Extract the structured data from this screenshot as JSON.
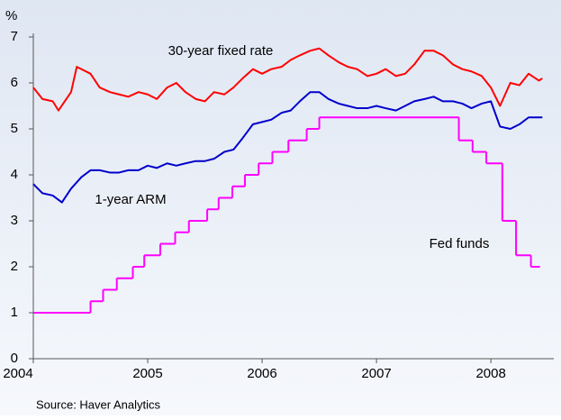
{
  "chart_data": {
    "type": "line",
    "ylabel": "%",
    "source": "Source: Haver Analytics",
    "xlim": [
      2004,
      2008.55
    ],
    "xticks": [
      2004,
      2005,
      2006,
      2007,
      2008
    ],
    "ylim": [
      0,
      7
    ],
    "yticks": [
      0,
      1,
      2,
      3,
      4,
      5,
      6,
      7
    ],
    "series": [
      {
        "name": "30-year fixed rate",
        "color": "#ff0000",
        "x": [
          2004.0,
          2004.08,
          2004.17,
          2004.22,
          2004.33,
          2004.38,
          2004.5,
          2004.58,
          2004.67,
          2004.75,
          2004.83,
          2004.92,
          2005.0,
          2005.08,
          2005.17,
          2005.25,
          2005.33,
          2005.42,
          2005.5,
          2005.58,
          2005.67,
          2005.75,
          2005.83,
          2005.92,
          2006.0,
          2006.08,
          2006.17,
          2006.25,
          2006.33,
          2006.42,
          2006.5,
          2006.58,
          2006.67,
          2006.75,
          2006.83,
          2006.92,
          2007.0,
          2007.08,
          2007.17,
          2007.25,
          2007.33,
          2007.42,
          2007.5,
          2007.58,
          2007.67,
          2007.75,
          2007.83,
          2007.92,
          2008.0,
          2008.08,
          2008.17,
          2008.25,
          2008.33,
          2008.42,
          2008.45
        ],
        "values": [
          5.9,
          5.65,
          5.6,
          5.4,
          5.8,
          6.35,
          6.2,
          5.9,
          5.8,
          5.75,
          5.7,
          5.8,
          5.75,
          5.65,
          5.9,
          6.0,
          5.8,
          5.65,
          5.6,
          5.8,
          5.75,
          5.9,
          6.1,
          6.3,
          6.2,
          6.3,
          6.35,
          6.5,
          6.6,
          6.7,
          6.75,
          6.6,
          6.45,
          6.35,
          6.3,
          6.15,
          6.2,
          6.3,
          6.15,
          6.2,
          6.4,
          6.7,
          6.7,
          6.6,
          6.4,
          6.3,
          6.25,
          6.15,
          5.9,
          5.5,
          6.0,
          5.95,
          6.2,
          6.05,
          6.1
        ]
      },
      {
        "name": "1-year ARM",
        "color": "#0000cc",
        "x": [
          2004.0,
          2004.08,
          2004.17,
          2004.25,
          2004.33,
          2004.42,
          2004.5,
          2004.58,
          2004.67,
          2004.75,
          2004.83,
          2004.92,
          2005.0,
          2005.08,
          2005.17,
          2005.25,
          2005.33,
          2005.42,
          2005.5,
          2005.58,
          2005.67,
          2005.75,
          2005.83,
          2005.92,
          2006.0,
          2006.08,
          2006.17,
          2006.25,
          2006.33,
          2006.42,
          2006.5,
          2006.58,
          2006.67,
          2006.75,
          2006.83,
          2006.92,
          2007.0,
          2007.08,
          2007.17,
          2007.25,
          2007.33,
          2007.42,
          2007.5,
          2007.58,
          2007.67,
          2007.75,
          2007.83,
          2007.92,
          2008.0,
          2008.08,
          2008.17,
          2008.25,
          2008.33,
          2008.42,
          2008.45
        ],
        "values": [
          3.8,
          3.6,
          3.55,
          3.4,
          3.7,
          3.95,
          4.1,
          4.1,
          4.05,
          4.05,
          4.1,
          4.1,
          4.2,
          4.15,
          4.25,
          4.2,
          4.25,
          4.3,
          4.3,
          4.35,
          4.5,
          4.55,
          4.8,
          5.1,
          5.15,
          5.2,
          5.35,
          5.4,
          5.6,
          5.8,
          5.8,
          5.65,
          5.55,
          5.5,
          5.45,
          5.45,
          5.5,
          5.45,
          5.4,
          5.5,
          5.6,
          5.65,
          5.7,
          5.6,
          5.6,
          5.55,
          5.45,
          5.55,
          5.6,
          5.05,
          5.0,
          5.1,
          5.25,
          5.25,
          5.25
        ]
      },
      {
        "name": "Fed funds",
        "color": "#ff00ff",
        "drawstyle": "steps-post",
        "x": [
          2004.0,
          2004.5,
          2004.61,
          2004.73,
          2004.87,
          2004.97,
          2005.11,
          2005.24,
          2005.36,
          2005.52,
          2005.62,
          2005.74,
          2005.85,
          2005.97,
          2006.09,
          2006.23,
          2006.39,
          2006.5,
          2007.72,
          2007.84,
          2007.96,
          2008.1,
          2008.22,
          2008.35,
          2008.43
        ],
        "values": [
          1.0,
          1.25,
          1.5,
          1.75,
          2.0,
          2.25,
          2.5,
          2.75,
          3.0,
          3.25,
          3.5,
          3.75,
          4.0,
          4.25,
          4.5,
          4.75,
          5.0,
          5.25,
          4.75,
          4.5,
          4.25,
          3.0,
          2.25,
          2.0,
          2.0
        ]
      }
    ]
  }
}
